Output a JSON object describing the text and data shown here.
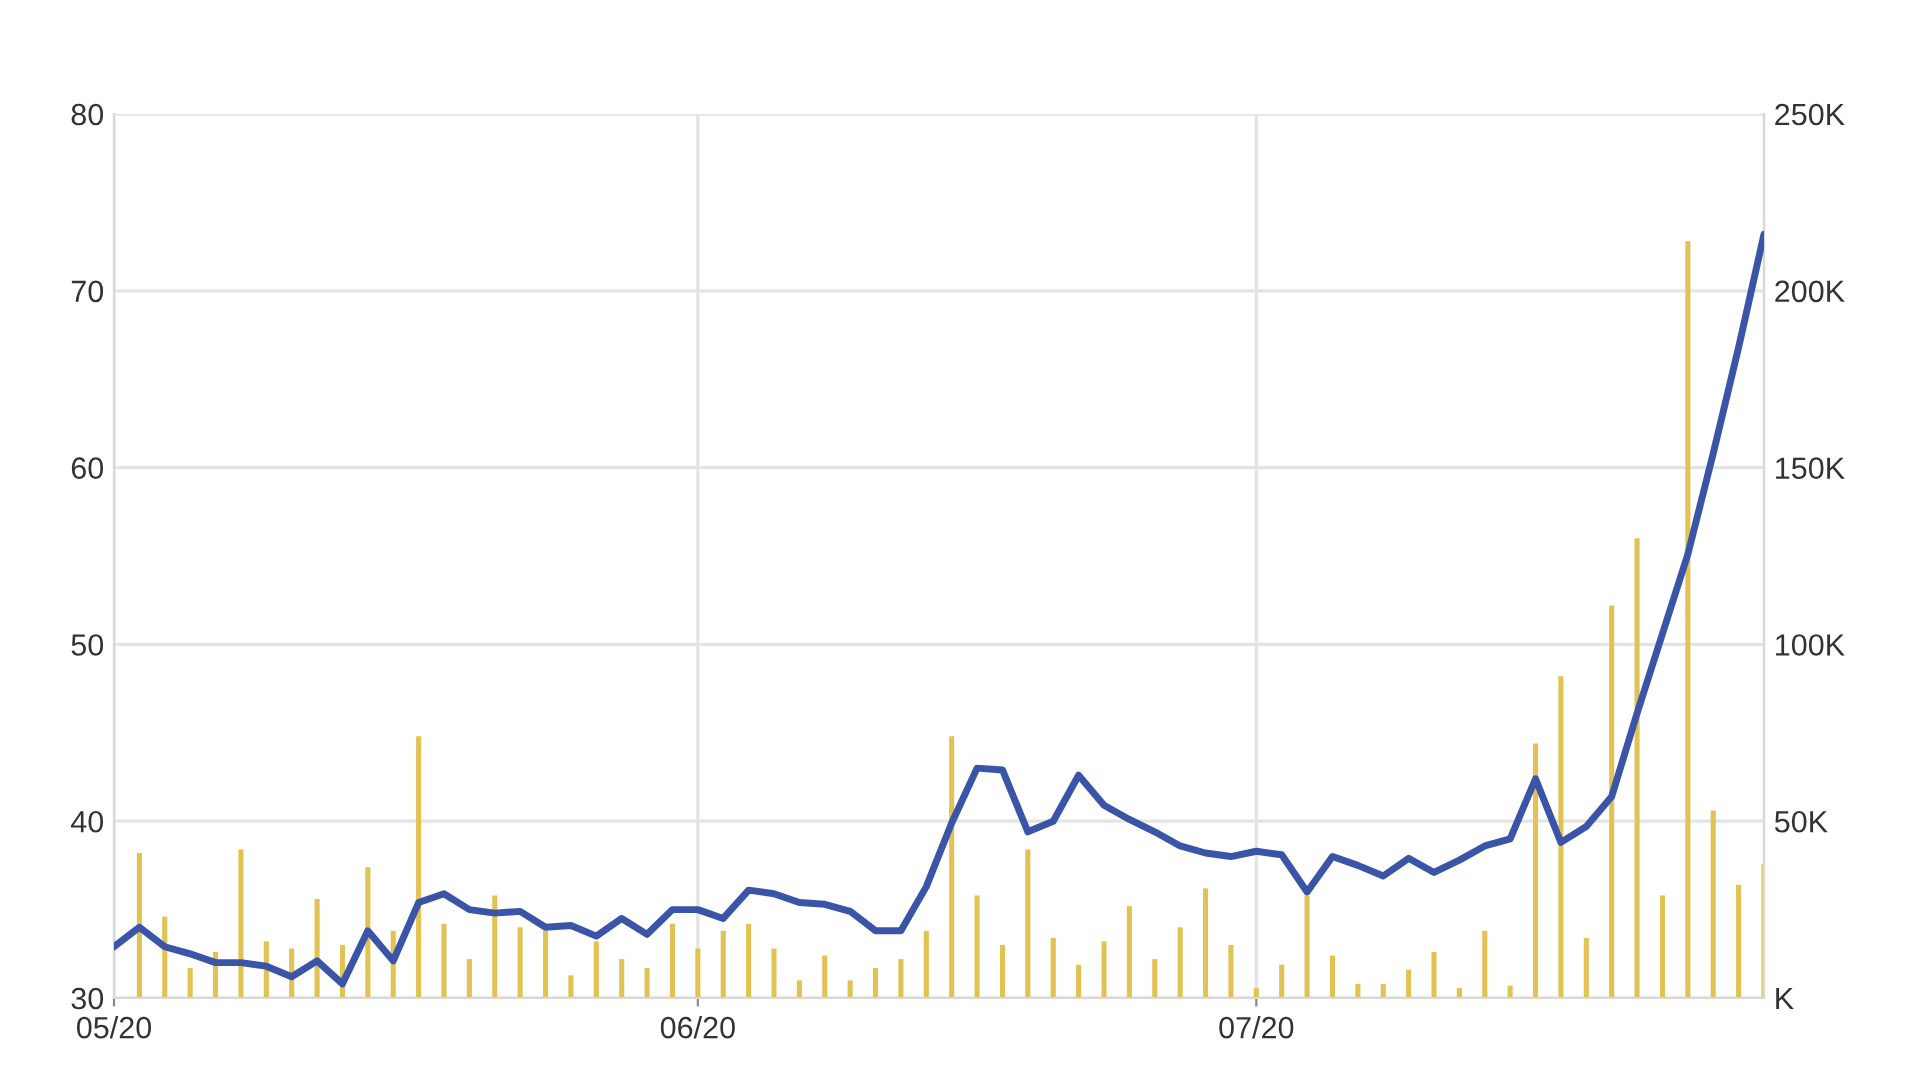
{
  "chart_data": {
    "type": "line",
    "categories": [
      "05/20",
      null,
      null,
      null,
      null,
      null,
      null,
      null,
      null,
      null,
      null,
      null,
      null,
      null,
      null,
      null,
      null,
      null,
      null,
      null,
      null,
      null,
      null,
      "06/20",
      null,
      null,
      null,
      null,
      null,
      null,
      null,
      null,
      null,
      null,
      null,
      null,
      null,
      null,
      null,
      null,
      null,
      null,
      null,
      null,
      null,
      "07/20",
      null,
      null,
      null,
      null,
      null,
      null,
      null,
      null,
      null,
      null,
      null,
      null,
      null,
      null,
      null,
      null,
      null,
      null,
      null,
      null
    ],
    "series": [
      {
        "type": "bar",
        "axis": "y2",
        "color": "#e2c252",
        "values": [
          null,
          41000,
          23000,
          8500,
          13000,
          42000,
          16000,
          14000,
          28000,
          15000,
          37000,
          19000,
          74000,
          21000,
          11000,
          29000,
          20000,
          19000,
          6400,
          16000,
          11000,
          8500,
          21000,
          14000,
          19000,
          21000,
          14000,
          5000,
          12000,
          5000,
          8500,
          11000,
          19000,
          74000,
          29000,
          15000,
          42000,
          17000,
          9400,
          16000,
          26000,
          11000,
          20000,
          31000,
          15000,
          2800,
          9400,
          29000,
          12000,
          4000,
          4000,
          8000,
          13000,
          2800,
          19000,
          3500,
          72000,
          91000,
          17000,
          111000,
          130000,
          29000,
          214000,
          53000,
          32000,
          38000
        ]
      },
      {
        "color": "#3a55a8",
        "values": [
          32.9,
          34.0,
          32.9,
          32.5,
          32.0,
          32.0,
          31.8,
          31.2,
          32.1,
          30.8,
          33.8,
          32.1,
          35.4,
          35.9,
          35.0,
          34.8,
          34.9,
          34.0,
          34.1,
          33.5,
          34.5,
          33.6,
          35.0,
          35.0,
          34.5,
          36.1,
          35.9,
          35.4,
          35.3,
          34.9,
          33.8,
          33.8,
          36.3,
          39.9,
          43.0,
          42.9,
          39.4,
          40.0,
          42.6,
          40.9,
          40.1,
          39.4,
          38.6,
          38.2,
          38.0,
          38.3,
          38.1,
          36.0,
          38.0,
          37.5,
          36.9,
          37.9,
          37.1,
          37.8,
          38.6,
          39.0,
          42.4,
          38.8,
          39.7,
          41.4,
          46.1,
          50.6,
          55.1,
          60.8,
          66.8,
          73.2
        ]
      }
    ],
    "ylim": [
      30,
      80
    ],
    "yticks": [
      30,
      40,
      50,
      60,
      70,
      80
    ],
    "y2lim": [
      0,
      250000
    ],
    "y2ticks": [
      {
        "value": 0,
        "label": "K"
      },
      {
        "value": 50000,
        "label": "50K"
      },
      {
        "value": 100000,
        "label": "100K"
      },
      {
        "value": 150000,
        "label": "150K"
      },
      {
        "value": 200000,
        "label": "200K"
      },
      {
        "value": 250000,
        "label": "250K"
      }
    ],
    "grid": true
  }
}
